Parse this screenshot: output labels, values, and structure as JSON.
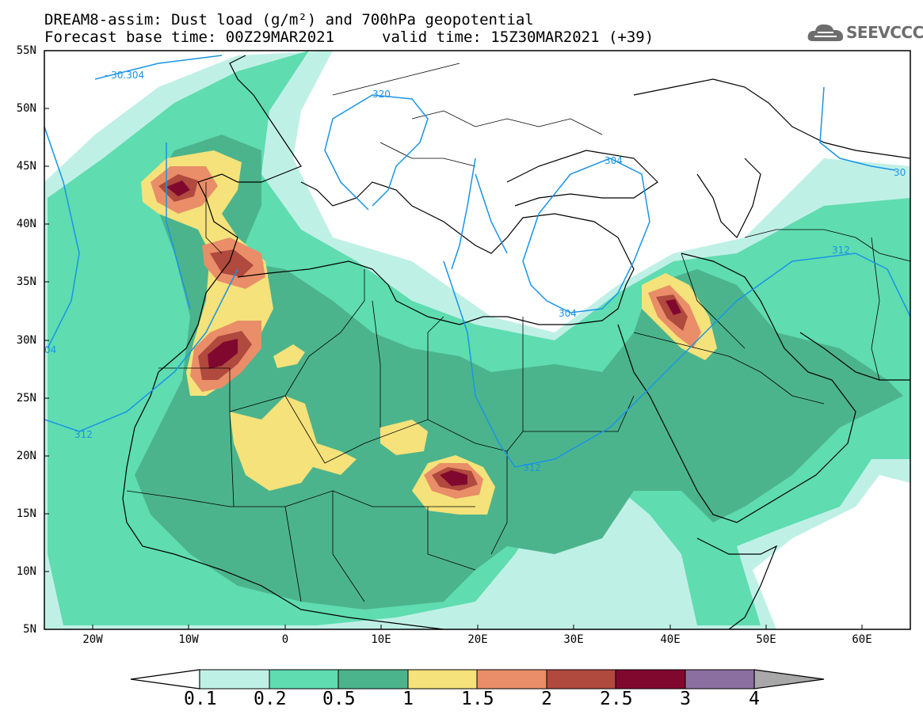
{
  "title": {
    "line1": "DREAM8-assim: Dust load (g/m²) and 700hPa geopotential",
    "line2": "Forecast base time: 00Z29MAR2021",
    "valid": "valid time: 15Z30MAR2021 (+39)"
  },
  "logo": {
    "text": "SEEVCCC",
    "icon": "cloud-logo-icon"
  },
  "axes": {
    "lat_labels": [
      "55N",
      "50N",
      "45N",
      "40N",
      "35N",
      "30N",
      "25N",
      "20N",
      "15N",
      "10N",
      "5N"
    ],
    "lon_labels": [
      "20W",
      "10W",
      "0",
      "10E",
      "20E",
      "30E",
      "40E",
      "50E",
      "60E"
    ]
  },
  "contours": {
    "labels": [
      "- 30.304",
      "320",
      "304",
      "312",
      "304",
      "312",
      "312",
      "30",
      "04"
    ]
  },
  "legend": {
    "levels": [
      "0.1",
      "0.2",
      "0.5",
      "1",
      "1.5",
      "2",
      "2.5",
      "3",
      "4"
    ],
    "colors": [
      "#ffffff",
      "#bff0e6",
      "#5fdcb0",
      "#4cb48c",
      "#f5e27a",
      "#e98e68",
      "#b0493e",
      "#80082e",
      "#8a6fa0",
      "#a8a8a8"
    ]
  },
  "map_colors": {
    "c01": "#bff0e6",
    "c02": "#5fdcb0",
    "c05": "#4cb48c",
    "c1": "#f5e27a",
    "c15": "#e98e68",
    "c2": "#b0493e",
    "c25": "#80082e",
    "contour": "#1a94e6"
  }
}
